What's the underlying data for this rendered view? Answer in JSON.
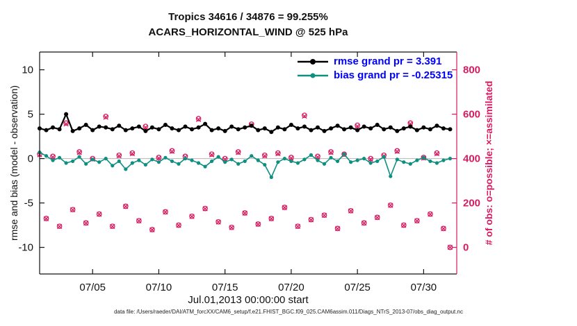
{
  "title": {
    "line1": "Tropics 34616 / 34876 = 99.255%",
    "line2": "ACARS_HORIZONTAL_WIND @ 525 hPa"
  },
  "axes": {
    "x_label": "Jul.01,2013 00:00:00 start",
    "x_ticks": [
      {
        "value": 5,
        "label": "07/05"
      },
      {
        "value": 10,
        "label": "07/10"
      },
      {
        "value": 15,
        "label": "07/15"
      },
      {
        "value": 20,
        "label": "07/20"
      },
      {
        "value": 25,
        "label": "07/25"
      },
      {
        "value": 30,
        "label": "07/30"
      }
    ],
    "y_left_label": "rmse and bias (model - observation)",
    "y_left_ticks": [
      -10,
      -5,
      0,
      5,
      10
    ],
    "y_right_label": "# of obs: o=possible; ×=assimilated",
    "y_right_ticks": [
      0,
      200,
      400,
      600,
      800
    ]
  },
  "legend": {
    "rmse_label": "rmse grand pr = 3.391",
    "bias_label": "bias grand pr = -0.25315"
  },
  "caption": "data file: /Users/raeder/DAI/ATM_forcXX/CAM6_setup/f.e21.FHIST_BGC.f09_025.CAM6assim.011/Diags_NTrS_2013-07/obs_diag_output.nc",
  "colors": {
    "rmse": "#000000",
    "bias": "#0e8f80",
    "crimson": "#d81b60",
    "legend_text": "#0000ff",
    "zero_line": "#b5b5b5",
    "axis": "#111111"
  },
  "chart_data": {
    "type": "line",
    "title": "Tropics 34616 / 34876 = 99.255% / ACARS_HORIZONTAL_WIND @ 525 hPa",
    "xlabel": "Jul.01,2013 00:00:00 start",
    "ylabel_left": "rmse and bias (model - observation)",
    "ylabel_right": "# of obs: o=possible; ×=assimilated",
    "xlim": [
      1,
      32.5
    ],
    "ylim_left": [
      -13,
      12
    ],
    "ylim_right": [
      -120,
      880
    ],
    "grand_stats": {
      "rmse": 3.391,
      "bias": -0.25315,
      "possible": 34876,
      "assimilated": 34616,
      "percent_assimilated": 99.255
    },
    "x_days": [
      1,
      1.5,
      2,
      2.5,
      3,
      3.5,
      4,
      4.5,
      5,
      5.5,
      6,
      6.5,
      7,
      7.5,
      8,
      8.5,
      9,
      9.5,
      10,
      10.5,
      11,
      11.5,
      12,
      12.5,
      13,
      13.5,
      14,
      14.5,
      15,
      15.5,
      16,
      16.5,
      17,
      17.5,
      18,
      18.5,
      19,
      19.5,
      20,
      20.5,
      21,
      21.5,
      22,
      22.5,
      23,
      23.5,
      24,
      24.5,
      25,
      25.5,
      26,
      26.5,
      27,
      27.5,
      28,
      28.5,
      29,
      29.5,
      30,
      30.5,
      31,
      31.5,
      32
    ],
    "series": [
      {
        "name": "rmse",
        "axis": "left",
        "marker": "filled-circle",
        "color": "#000000",
        "values": [
          3.4,
          3.2,
          3.5,
          3.3,
          5.0,
          3.1,
          3.4,
          3.8,
          3.2,
          3.6,
          3.5,
          3.3,
          3.7,
          3.2,
          3.4,
          3.6,
          3.1,
          3.5,
          3.3,
          3.8,
          3.4,
          3.2,
          3.6,
          3.3,
          3.5,
          3.9,
          3.2,
          3.4,
          3.1,
          3.6,
          3.3,
          3.5,
          3.7,
          3.2,
          3.4,
          3.0,
          3.5,
          3.3,
          3.8,
          3.4,
          3.6,
          3.2,
          3.5,
          3.1,
          3.4,
          3.7,
          3.3,
          3.5,
          3.2,
          3.6,
          3.4,
          3.8,
          3.3,
          3.5,
          3.1,
          3.4,
          3.6,
          3.2,
          3.5,
          3.3,
          3.7,
          3.4,
          3.3
        ]
      },
      {
        "name": "bias",
        "axis": "left",
        "marker": "filled-circle",
        "color": "#0e8f80",
        "values": [
          0.7,
          0.3,
          -0.2,
          0.1,
          -0.5,
          -0.3,
          0.2,
          -0.6,
          -0.1,
          -0.4,
          0.0,
          -0.8,
          -0.3,
          -1.2,
          -0.5,
          -0.2,
          -0.7,
          -0.1,
          -0.4,
          0.1,
          -0.3,
          -0.6,
          0.0,
          -0.2,
          -0.5,
          -0.9,
          -0.3,
          0.2,
          -0.4,
          -0.1,
          -0.6,
          -0.3,
          0.3,
          -0.2,
          -0.7,
          -2.1,
          -0.4,
          0.0,
          -0.3,
          -0.5,
          -0.1,
          0.4,
          -0.2,
          -0.6,
          0.1,
          -0.3,
          0.5,
          -0.4,
          -0.2,
          0.0,
          -0.5,
          -0.3,
          0.2,
          -2.0,
          -0.1,
          -0.4,
          -0.6,
          -0.2,
          0.1,
          -0.3,
          -0.5,
          -0.2,
          0.0
        ]
      },
      {
        "name": "possible_obs",
        "axis": "right",
        "marker": "o",
        "color": "#d81b60",
        "values": [
          420,
          130,
          410,
          95,
          560,
          170,
          430,
          110,
          400,
          150,
          590,
          95,
          415,
          185,
          425,
          120,
          545,
          80,
          405,
          160,
          435,
          100,
          410,
          140,
          580,
          175,
          420,
          115,
          400,
          90,
          430,
          155,
          555,
          105,
          415,
          130,
          425,
          180,
          405,
          95,
          595,
          125,
          410,
          145,
          430,
          85,
          420,
          165,
          550,
          110,
          400,
          135,
          415,
          190,
          435,
          100,
          560,
          120,
          405,
          150,
          425,
          85,
          0
        ]
      },
      {
        "name": "assimilated_obs",
        "axis": "right",
        "marker": "x",
        "color": "#d81b60",
        "values": [
          417,
          129,
          407,
          94,
          556,
          169,
          427,
          109,
          397,
          149,
          586,
          94,
          412,
          184,
          422,
          119,
          541,
          79,
          402,
          159,
          432,
          99,
          407,
          139,
          576,
          174,
          417,
          114,
          397,
          89,
          427,
          154,
          551,
          104,
          412,
          129,
          422,
          179,
          402,
          94,
          591,
          124,
          407,
          144,
          427,
          84,
          417,
          164,
          546,
          109,
          397,
          134,
          412,
          189,
          432,
          99,
          556,
          119,
          402,
          149,
          422,
          84,
          0
        ]
      }
    ]
  }
}
